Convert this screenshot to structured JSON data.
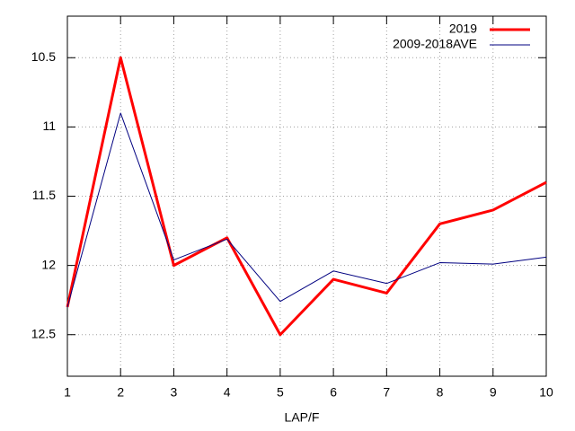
{
  "chart_data": {
    "type": "line",
    "x_label": "LAP/F",
    "x": [
      1,
      2,
      3,
      4,
      5,
      6,
      7,
      8,
      9,
      10
    ],
    "series": [
      {
        "name": "2019",
        "color": "#ff0000",
        "values": [
          12.3,
          10.5,
          12.0,
          11.8,
          12.5,
          12.1,
          12.2,
          11.7,
          11.6,
          11.4
        ]
      },
      {
        "name": "2009-2018AVE",
        "color": "#000080",
        "values": [
          12.3,
          10.9,
          11.96,
          11.81,
          12.26,
          12.04,
          12.13,
          11.98,
          11.99,
          11.94
        ]
      }
    ],
    "xlim": [
      1,
      10
    ],
    "xticks": [
      1,
      2,
      3,
      4,
      5,
      6,
      7,
      8,
      9,
      10
    ],
    "ylim": [
      12.8,
      10.2
    ],
    "yticks": [
      10.5,
      11,
      11.5,
      12,
      12.5
    ],
    "grid": true,
    "legend": "top-right"
  }
}
